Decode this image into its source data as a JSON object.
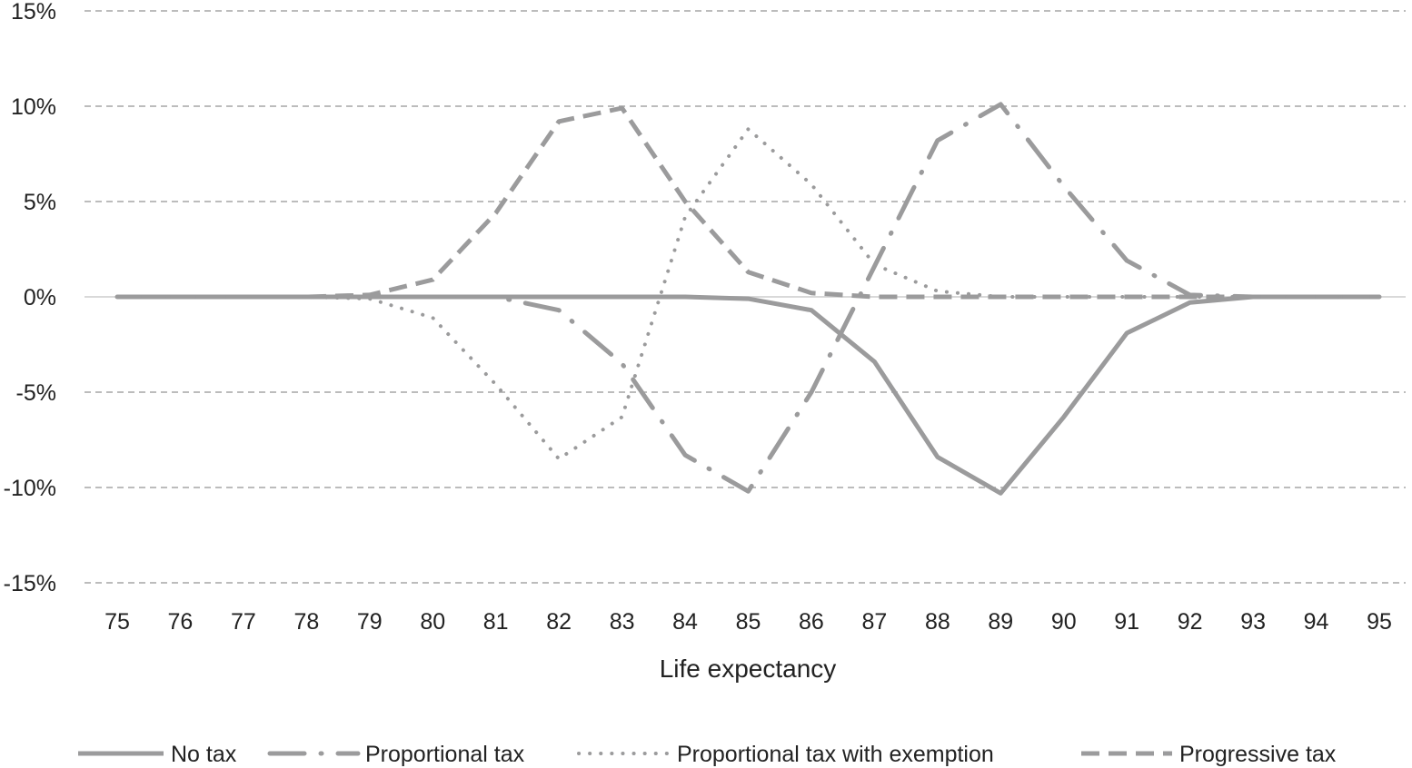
{
  "chart_data": {
    "type": "line",
    "title": "",
    "xlabel": "Life expectancy",
    "ylabel": "",
    "x": [
      75,
      76,
      77,
      78,
      79,
      80,
      81,
      82,
      83,
      84,
      85,
      86,
      87,
      88,
      89,
      90,
      91,
      92,
      93,
      94,
      95
    ],
    "xlim": [
      75,
      95
    ],
    "ylim": [
      -15,
      15
    ],
    "yticks": [
      15,
      10,
      5,
      0,
      -5,
      -10,
      -15
    ],
    "ytick_labels": [
      "15%",
      "10%",
      "5%",
      "0%",
      "-5%",
      "-10%",
      "-15%"
    ],
    "grid": "horizontal dashed",
    "legend_position": "bottom",
    "series": [
      {
        "name": "No tax",
        "style": "solid",
        "values": [
          0,
          0,
          0,
          0,
          0,
          0,
          0,
          0,
          0,
          0,
          -0.1,
          -0.7,
          -3.4,
          -8.4,
          -10.3,
          -6.3,
          -1.9,
          -0.3,
          0,
          0,
          0
        ]
      },
      {
        "name": "Proportional tax",
        "style": "long-dash-dot",
        "values": [
          0,
          0,
          0,
          0,
          0,
          0,
          0,
          -0.7,
          -3.5,
          -8.3,
          -10.2,
          -5.0,
          1.6,
          8.2,
          10.1,
          5.8,
          1.9,
          0.1,
          0,
          0,
          0
        ]
      },
      {
        "name": "Proportional tax with exemption",
        "style": "dotted",
        "values": [
          0,
          0,
          0,
          0,
          -0.1,
          -1.1,
          -4.6,
          -8.5,
          -6.3,
          4.2,
          8.8,
          5.9,
          1.7,
          0.3,
          0,
          0,
          0,
          0,
          0,
          0,
          0
        ]
      },
      {
        "name": "Progressive tax",
        "style": "dashed",
        "values": [
          0,
          0,
          0,
          0,
          0.1,
          0.9,
          4.4,
          9.2,
          9.9,
          5.0,
          1.3,
          0.2,
          0,
          0,
          0,
          0,
          0,
          0,
          0,
          0,
          0
        ]
      }
    ],
    "colors": {
      "series": "#9b9b9c",
      "grid": "#a6a6a6",
      "zero_line": "#d9d9d9",
      "text": "#222222"
    }
  }
}
